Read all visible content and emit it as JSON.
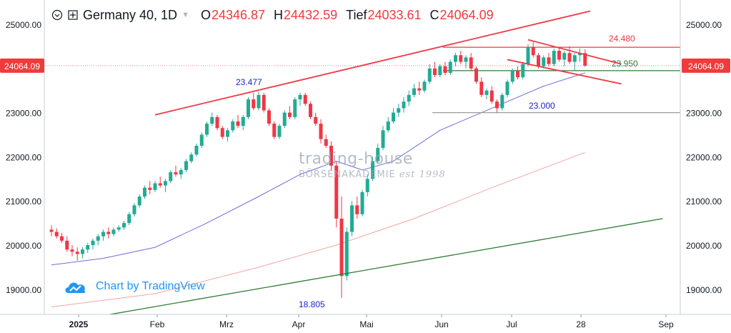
{
  "header": {
    "symbol": "Germany 40, 1D",
    "o_label": "O",
    "o_value": "24346.87",
    "h_label": "H",
    "h_value": "24432.59",
    "l_label": "Tief",
    "l_value": "24033.61",
    "c_label": "C",
    "c_value": "24064.09"
  },
  "watermark": {
    "text": "Chart by TradingView"
  },
  "publisher_logo": {
    "line1": "trading-house",
    "line2": "BÖRSENAKADEMIE",
    "line2_suffix": "est 1998"
  },
  "colors": {
    "up": "#22ab94",
    "down": "#f23645",
    "trend": "#f23645",
    "channel": "#2e7d32",
    "ma_short": "#6e6ce0",
    "ma_long": "#f4a5a5",
    "level_23000": "#9e9e9e",
    "level_23950": "#2e7d32",
    "price_tag": "#ef3b3b",
    "annotation_blue": "#1a22c8"
  },
  "chart_data": {
    "type": "candlestick",
    "title": "Germany 40, 1D",
    "last_price": "24064.09",
    "ylim": [
      18500,
      25300
    ],
    "y_ticks": [
      "25000.00",
      "24000.00",
      "23000.00",
      "22000.00",
      "21000.00",
      "20000.00",
      "19000.00"
    ],
    "x_ticks": [
      "2025",
      "Feb",
      "Mrz",
      "Apr",
      "Mai",
      "Jun",
      "Jul",
      "28",
      "Sep"
    ],
    "annotations": [
      {
        "label": "23.477",
        "value": 23477,
        "color": "blue"
      },
      {
        "label": "18.805",
        "value": 18805,
        "color": "blue"
      },
      {
        "label": "23.000",
        "value": 23000,
        "color": "blue"
      },
      {
        "label": "24.480",
        "value": 24480,
        "color": "red"
      },
      {
        "label": "23.950",
        "value": 23950,
        "color": "green"
      }
    ],
    "horizontal_levels": [
      24480,
      23950,
      23000
    ],
    "candles": [
      [
        20350,
        20450,
        20200,
        20300
      ],
      [
        20300,
        20380,
        20150,
        20200
      ],
      [
        20200,
        20280,
        20050,
        20100
      ],
      [
        20100,
        20200,
        19850,
        19900
      ],
      [
        19900,
        20000,
        19750,
        19850
      ],
      [
        19850,
        19950,
        19650,
        19800
      ],
      [
        19800,
        19950,
        19700,
        19900
      ],
      [
        19900,
        20050,
        19820,
        20000
      ],
      [
        20000,
        20150,
        19900,
        20100
      ],
      [
        20100,
        20250,
        20000,
        20200
      ],
      [
        20200,
        20350,
        20100,
        20300
      ],
      [
        20300,
        20400,
        20150,
        20250
      ],
      [
        20250,
        20400,
        20200,
        20350
      ],
      [
        20350,
        20450,
        20300,
        20400
      ],
      [
        20400,
        20550,
        20350,
        20500
      ],
      [
        20500,
        20750,
        20450,
        20700
      ],
      [
        20700,
        20950,
        20650,
        20900
      ],
      [
        20900,
        21150,
        20850,
        21100
      ],
      [
        21100,
        21350,
        21050,
        21300
      ],
      [
        21300,
        21450,
        21150,
        21250
      ],
      [
        21250,
        21450,
        21200,
        21400
      ],
      [
        21400,
        21550,
        21300,
        21350
      ],
      [
        21350,
        21500,
        21200,
        21450
      ],
      [
        21450,
        21700,
        21400,
        21650
      ],
      [
        21650,
        21800,
        21550,
        21600
      ],
      [
        21600,
        21750,
        21500,
        21700
      ],
      [
        21700,
        21950,
        21650,
        21900
      ],
      [
        21900,
        22100,
        21850,
        22050
      ],
      [
        22050,
        22300,
        22000,
        22250
      ],
      [
        22250,
        22550,
        22200,
        22500
      ],
      [
        22500,
        22800,
        22450,
        22750
      ],
      [
        22750,
        23000,
        22700,
        22900
      ],
      [
        22900,
        22950,
        22600,
        22650
      ],
      [
        22650,
        22700,
        22400,
        22450
      ],
      [
        22450,
        22650,
        22350,
        22600
      ],
      [
        22600,
        22850,
        22550,
        22800
      ],
      [
        22800,
        22950,
        22650,
        22700
      ],
      [
        22700,
        22950,
        22600,
        22900
      ],
      [
        22900,
        23350,
        22850,
        23300
      ],
      [
        23300,
        23450,
        23050,
        23100
      ],
      [
        23100,
        23477,
        23050,
        23400
      ],
      [
        23400,
        23450,
        23000,
        23050
      ],
      [
        23050,
        23100,
        22700,
        22750
      ],
      [
        22750,
        22800,
        22400,
        22450
      ],
      [
        22450,
        22750,
        22400,
        22700
      ],
      [
        22700,
        23050,
        22650,
        23000
      ],
      [
        23000,
        23150,
        22850,
        22900
      ],
      [
        22900,
        23350,
        22850,
        23300
      ],
      [
        23300,
        23450,
        23150,
        23400
      ],
      [
        23400,
        23450,
        23150,
        23200
      ],
      [
        23200,
        23250,
        22850,
        22900
      ],
      [
        22900,
        23000,
        22700,
        22750
      ],
      [
        22750,
        22850,
        22300,
        22400
      ],
      [
        22400,
        22500,
        22200,
        22250
      ],
      [
        22250,
        22350,
        21700,
        21800
      ],
      [
        21800,
        21900,
        20400,
        20600
      ],
      [
        20600,
        21100,
        18805,
        19300
      ],
      [
        19300,
        20400,
        19200,
        20300
      ],
      [
        20300,
        21000,
        20200,
        20900
      ],
      [
        20900,
        21100,
        20600,
        20700
      ],
      [
        20700,
        21250,
        20650,
        21200
      ],
      [
        21200,
        21600,
        21100,
        21500
      ],
      [
        21500,
        22000,
        21450,
        21900
      ],
      [
        21900,
        22300,
        21850,
        22200
      ],
      [
        22200,
        22700,
        22150,
        22600
      ],
      [
        22600,
        22900,
        22550,
        22800
      ],
      [
        22800,
        23100,
        22750,
        23000
      ],
      [
        23000,
        23200,
        22900,
        23100
      ],
      [
        23100,
        23350,
        23000,
        23250
      ],
      [
        23250,
        23500,
        23150,
        23400
      ],
      [
        23400,
        23650,
        23350,
        23550
      ],
      [
        23550,
        23700,
        23400,
        23500
      ],
      [
        23500,
        23750,
        23450,
        23700
      ],
      [
        23700,
        24100,
        23650,
        24000
      ],
      [
        24000,
        24150,
        23800,
        23850
      ],
      [
        23850,
        24100,
        23800,
        24050
      ],
      [
        24050,
        24150,
        23850,
        23900
      ],
      [
        23900,
        24200,
        23850,
        24150
      ],
      [
        24150,
        24350,
        24050,
        24300
      ],
      [
        24300,
        24400,
        24100,
        24150
      ],
      [
        24150,
        24300,
        24000,
        24250
      ],
      [
        24250,
        24350,
        23950,
        24000
      ],
      [
        24000,
        24050,
        23650,
        23700
      ],
      [
        23700,
        23800,
        23350,
        23400
      ],
      [
        23400,
        23550,
        23300,
        23500
      ],
      [
        23500,
        23600,
        23200,
        23250
      ],
      [
        23250,
        23300,
        23000,
        23100
      ],
      [
        23100,
        23450,
        23050,
        23400
      ],
      [
        23400,
        23750,
        23350,
        23700
      ],
      [
        23700,
        24000,
        23650,
        23950
      ],
      [
        23950,
        24050,
        23750,
        23800
      ],
      [
        23800,
        24150,
        23750,
        24100
      ],
      [
        24100,
        24550,
        24050,
        24480
      ],
      [
        24480,
        24600,
        24250,
        24300
      ],
      [
        24300,
        24350,
        24000,
        24050
      ],
      [
        24050,
        24300,
        24000,
        24250
      ],
      [
        24250,
        24350,
        24050,
        24100
      ],
      [
        24100,
        24450,
        24050,
        24400
      ],
      [
        24400,
        24480,
        24150,
        24200
      ],
      [
        24200,
        24400,
        24050,
        24350
      ],
      [
        24350,
        24500,
        24100,
        24150
      ],
      [
        24150,
        24350,
        23950,
        24300
      ],
      [
        24300,
        24450,
        24150,
        24346.87
      ],
      [
        24346.87,
        24432.59,
        24033.61,
        24064.09
      ]
    ],
    "ma_short": [
      [
        0,
        19550
      ],
      [
        10,
        19700
      ],
      [
        20,
        19950
      ],
      [
        30,
        20500
      ],
      [
        40,
        21100
      ],
      [
        48,
        21600
      ],
      [
        55,
        21900
      ],
      [
        60,
        21700
      ],
      [
        66,
        21900
      ],
      [
        75,
        22600
      ],
      [
        85,
        23100
      ],
      [
        95,
        23600
      ],
      [
        103,
        23900
      ]
    ],
    "ma_long": [
      [
        0,
        18600
      ],
      [
        20,
        18900
      ],
      [
        40,
        19500
      ],
      [
        55,
        20000
      ],
      [
        70,
        20600
      ],
      [
        85,
        21300
      ],
      [
        103,
        22100
      ]
    ],
    "trendlines": [
      {
        "name": "rising-upper",
        "from": [
          20,
          22950
        ],
        "to": [
          104,
          25300
        ],
        "color": "red"
      },
      {
        "name": "wedge-top",
        "from": [
          92,
          24650
        ],
        "to": [
          110,
          24100
        ],
        "color": "red"
      },
      {
        "name": "wedge-bottom",
        "from": [
          88,
          24200
        ],
        "to": [
          110,
          23650
        ],
        "color": "red"
      },
      {
        "name": "long-channel",
        "from": [
          0,
          18200
        ],
        "to": [
          118,
          20600
        ],
        "color": "green"
      }
    ]
  }
}
